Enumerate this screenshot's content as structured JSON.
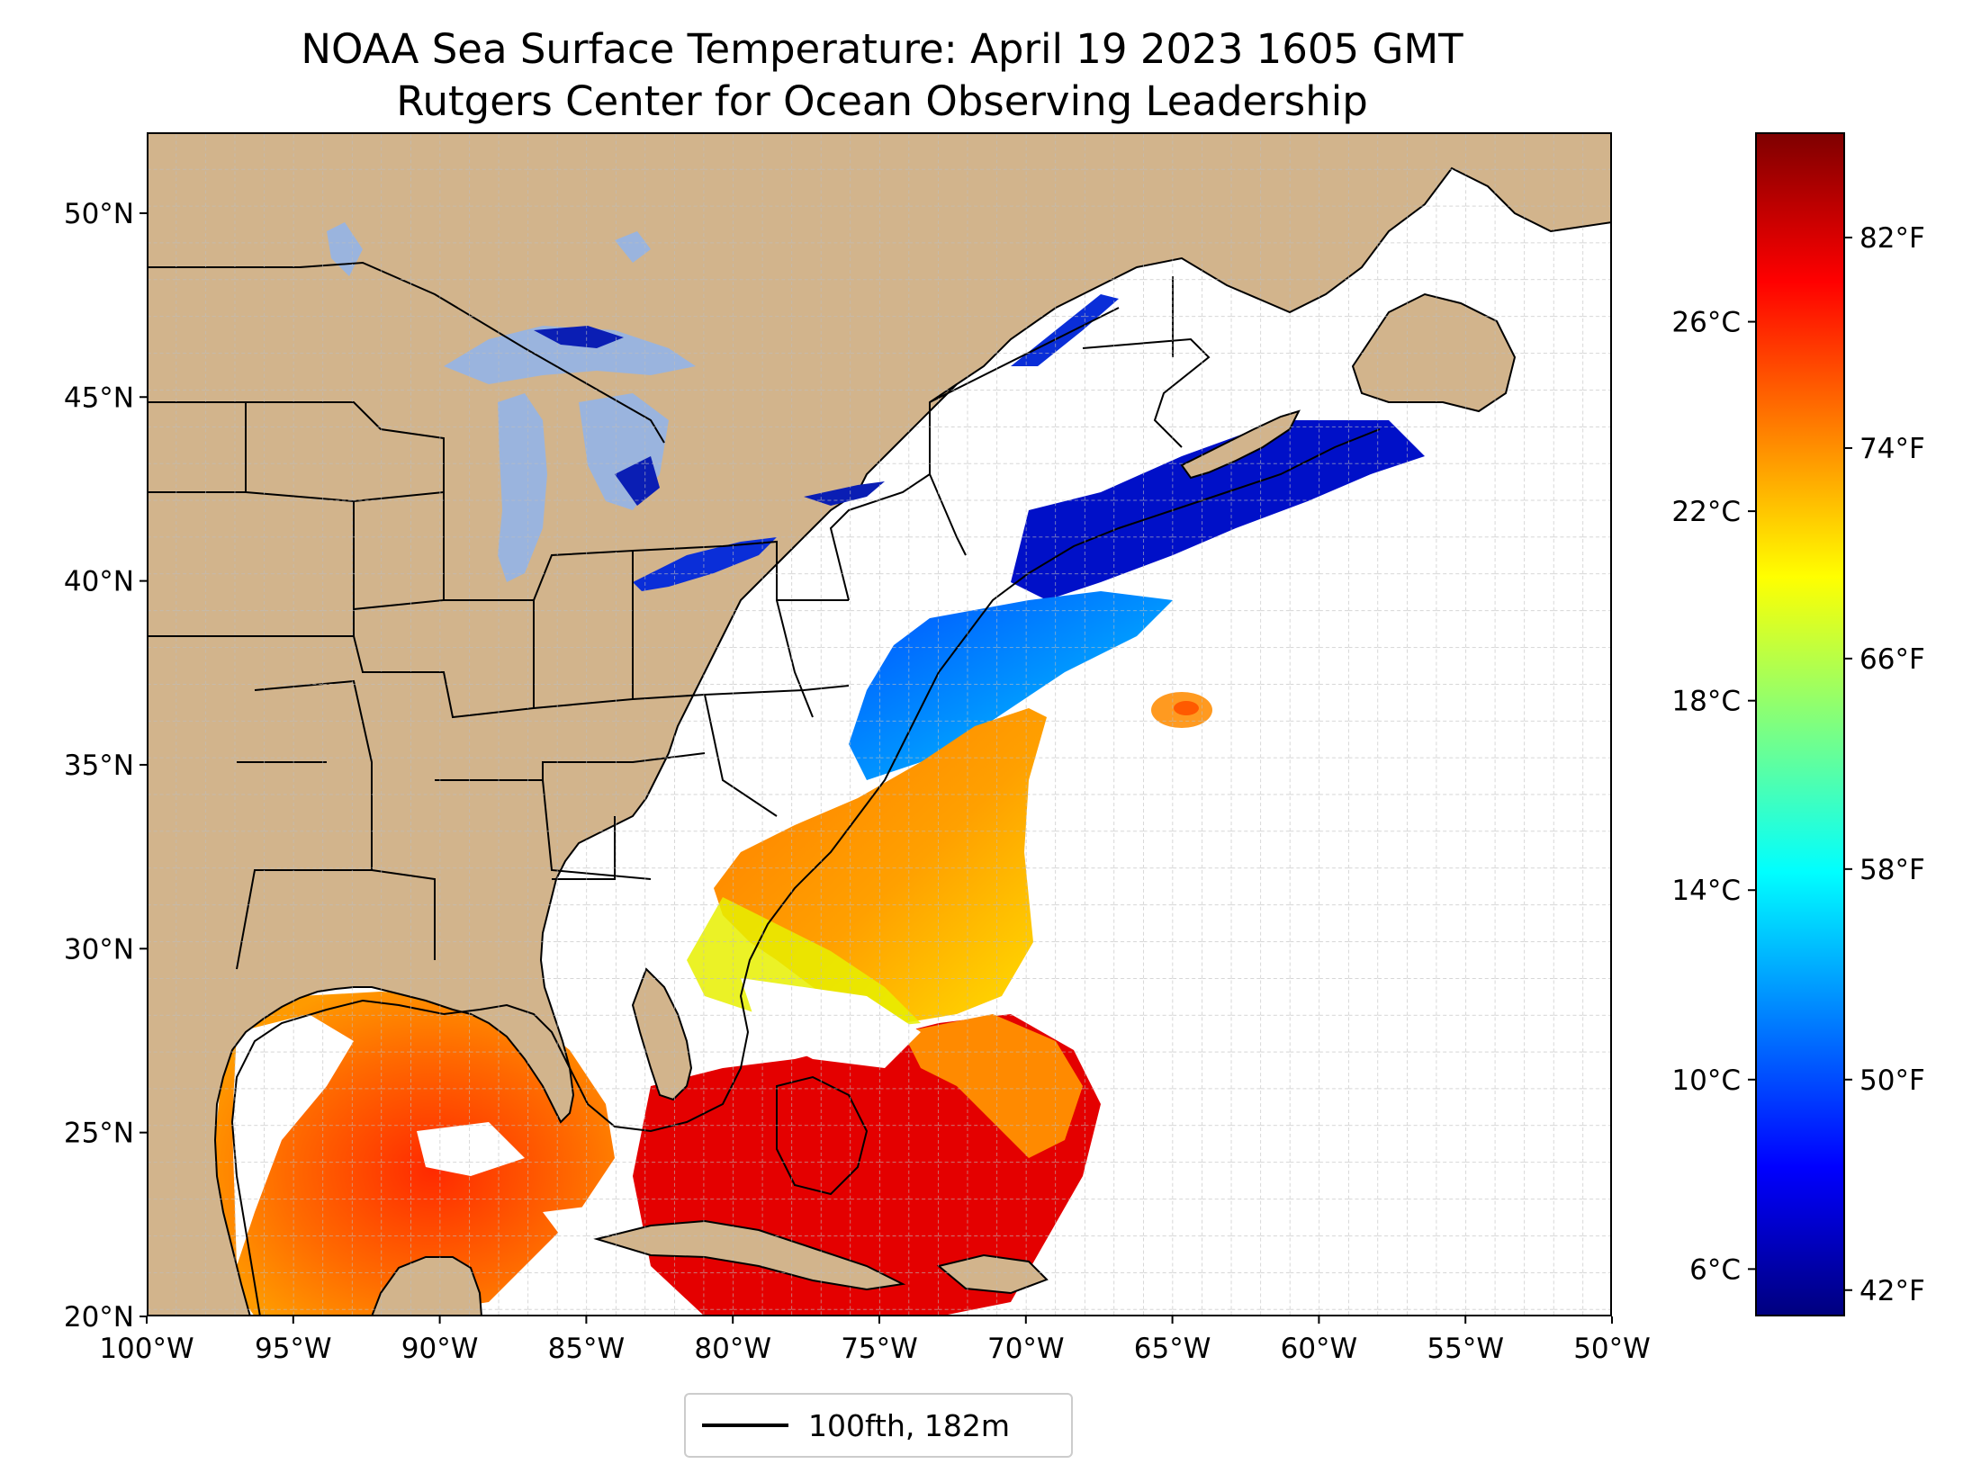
{
  "title": {
    "line1": "NOAA Sea Surface Temperature: April 19 2023 1605 GMT",
    "line2": "Rutgers Center for Ocean Observing Leadership"
  },
  "map": {
    "extent": {
      "lon_min": -100,
      "lon_max": -50,
      "lat_min": 20,
      "lat_max": 52.2
    },
    "gridlines": "dashed, every 1°",
    "land_color": "#d2b48c",
    "lake_color": "#9ab4de",
    "no_data_color": "#ffffff",
    "lon_ticks": [
      "100°W",
      "95°W",
      "90°W",
      "85°W",
      "80°W",
      "75°W",
      "70°W",
      "65°W",
      "60°W",
      "55°W",
      "50°W"
    ],
    "lat_ticks": [
      "50°N",
      "45°N",
      "40°N",
      "35°N",
      "30°N",
      "25°N",
      "20°N"
    ],
    "lat_tick_values": [
      50,
      45,
      40,
      35,
      30,
      25,
      20
    ],
    "lon_tick_values": [
      -100,
      -95,
      -90,
      -85,
      -80,
      -75,
      -70,
      -65,
      -60,
      -55,
      -50
    ]
  },
  "legend": {
    "label": "100fth, 182m",
    "line_color": "#000000"
  },
  "colorbar": {
    "colormap": "jet",
    "celsius_range": [
      5,
      30
    ],
    "celsius_labels": [
      "26°C",
      "22°C",
      "18°C",
      "14°C",
      "10°C",
      "6°C"
    ],
    "celsius_values": [
      26,
      22,
      18,
      14,
      10,
      6
    ],
    "fahrenheit_labels": [
      "82°F",
      "74°F",
      "66°F",
      "58°F",
      "50°F",
      "42°F"
    ],
    "fahrenheit_values": [
      82,
      74,
      66,
      58,
      50,
      42
    ],
    "stops": [
      "#00007f",
      "#0000ff",
      "#007fff",
      "#00ffff",
      "#7fff7f",
      "#ffff00",
      "#ff7f00",
      "#ff0000",
      "#7f0000"
    ]
  }
}
